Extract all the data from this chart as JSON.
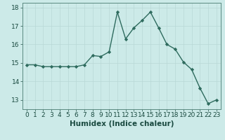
{
  "x": [
    0,
    1,
    2,
    3,
    4,
    5,
    6,
    7,
    8,
    9,
    10,
    11,
    12,
    13,
    14,
    15,
    16,
    17,
    18,
    19,
    20,
    21,
    22,
    23
  ],
  "y": [
    14.9,
    14.9,
    14.8,
    14.8,
    14.8,
    14.8,
    14.8,
    14.9,
    15.4,
    15.35,
    15.6,
    17.75,
    16.3,
    16.9,
    17.3,
    17.75,
    16.9,
    16.0,
    15.75,
    15.05,
    14.65,
    13.65,
    12.8,
    13.0
  ],
  "xlabel": "Humidex (Indice chaleur)",
  "xlim": [
    -0.5,
    23.5
  ],
  "ylim": [
    12.5,
    18.25
  ],
  "yticks": [
    13,
    14,
    15,
    16,
    17,
    18
  ],
  "xticks": [
    0,
    1,
    2,
    3,
    4,
    5,
    6,
    7,
    8,
    9,
    10,
    11,
    12,
    13,
    14,
    15,
    16,
    17,
    18,
    19,
    20,
    21,
    22,
    23
  ],
  "line_color": "#2e6b5e",
  "marker": "D",
  "marker_size": 2.2,
  "bg_color": "#cceae8",
  "grid_color": "#b8d8d6",
  "axis_color": "#5a8a80",
  "label_color": "#1a4a40",
  "font_size_xlabel": 7.5,
  "font_size_tick": 6.5
}
